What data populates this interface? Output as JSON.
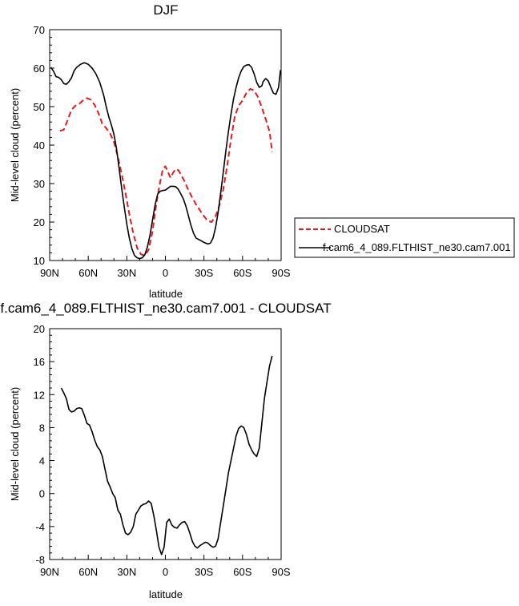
{
  "chart_data": [
    {
      "type": "line",
      "title": "DJF",
      "xlabel": "latitude",
      "ylabel": "Mid-level cloud (percent)",
      "x_tick_labels": [
        "90N",
        "60N",
        "30N",
        "0",
        "30S",
        "60S",
        "90S"
      ],
      "y_tick_labels": [
        "10",
        "20",
        "30",
        "40",
        "50",
        "60",
        "70"
      ],
      "xlim": [
        90,
        -90
      ],
      "ylim": [
        10,
        70
      ],
      "grid": false,
      "legend": "right",
      "series": [
        {
          "name": "CLOUDSAT",
          "color": "#e41a1c",
          "dash": "dashed",
          "points": [
            [
              82,
              43.7
            ],
            [
              79,
              44
            ],
            [
              76,
              46.5
            ],
            [
              73,
              49.2
            ],
            [
              70,
              50.2
            ],
            [
              67,
              50.7
            ],
            [
              64,
              51.6
            ],
            [
              61,
              52.2
            ],
            [
              58,
              51.8
            ],
            [
              55,
              50.4
            ],
            [
              52,
              48.3
            ],
            [
              49,
              45.5
            ],
            [
              46,
              44.4
            ],
            [
              43,
              43
            ],
            [
              40,
              40.8
            ],
            [
              37,
              37
            ],
            [
              34,
              32.5
            ],
            [
              31,
              27.5
            ],
            [
              28,
              22
            ],
            [
              25,
              17.1
            ],
            [
              22,
              13.3
            ],
            [
              19,
              11.6
            ],
            [
              16,
              11.3
            ],
            [
              13,
              12.8
            ],
            [
              10,
              17.5
            ],
            [
              7,
              25
            ],
            [
              4,
              30.5
            ],
            [
              2,
              33.8
            ],
            [
              0,
              34.5
            ],
            [
              -2,
              33
            ],
            [
              -4,
              31.5
            ],
            [
              -6,
              32.8
            ],
            [
              -8,
              33.8
            ],
            [
              -10,
              33.5
            ],
            [
              -12,
              32.4
            ],
            [
              -15,
              30.5
            ],
            [
              -18,
              28.2
            ],
            [
              -21,
              26.3
            ],
            [
              -24,
              24.5
            ],
            [
              -27,
              23
            ],
            [
              -30,
              21.5
            ],
            [
              -33,
              20.3
            ],
            [
              -36,
              20
            ],
            [
              -39,
              21.5
            ],
            [
              -42,
              24.3
            ],
            [
              -45,
              28.5
            ],
            [
              -48,
              34.5
            ],
            [
              -51,
              41.5
            ],
            [
              -54,
              47.5
            ],
            [
              -57,
              50.2
            ],
            [
              -60,
              51.6
            ],
            [
              -63,
              53.5
            ],
            [
              -66,
              54.6
            ],
            [
              -69,
              54.2
            ],
            [
              -72,
              52.5
            ],
            [
              -75,
              49.8
            ],
            [
              -78,
              46.8
            ],
            [
              -81,
              43.5
            ],
            [
              -83,
              38.2
            ]
          ]
        },
        {
          "name": "f.cam6_4_089.FLTHIST_ne30.cam7.001",
          "color": "#000000",
          "dash": "solid",
          "points": [
            [
              89,
              60.2
            ],
            [
              87,
              59.2
            ],
            [
              85,
              57.8
            ],
            [
              83,
              57.6
            ],
            [
              81,
              57
            ],
            [
              79,
              56
            ],
            [
              77,
              55.8
            ],
            [
              75,
              56.5
            ],
            [
              73,
              57.5
            ],
            [
              71,
              59.3
            ],
            [
              69,
              60.2
            ],
            [
              66,
              61
            ],
            [
              63,
              61.4
            ],
            [
              60,
              61
            ],
            [
              57,
              60
            ],
            [
              54,
              58.5
            ],
            [
              51,
              56.3
            ],
            [
              48,
              53
            ],
            [
              46,
              50
            ],
            [
              44,
              47.3
            ],
            [
              42,
              45.2
            ],
            [
              40,
              42.8
            ],
            [
              38,
              39
            ],
            [
              36,
              34
            ],
            [
              34,
              28.8
            ],
            [
              32,
              24
            ],
            [
              30,
              19.5
            ],
            [
              28,
              15.8
            ],
            [
              26,
              13
            ],
            [
              24,
              11.3
            ],
            [
              22,
              10.7
            ],
            [
              20,
              10.5
            ],
            [
              18,
              10.7
            ],
            [
              16,
              11.5
            ],
            [
              14,
              13.5
            ],
            [
              12,
              16.5
            ],
            [
              10,
              20.5
            ],
            [
              8,
              24.5
            ],
            [
              6,
              27.3
            ],
            [
              4,
              28
            ],
            [
              2,
              28.2
            ],
            [
              0,
              28.3
            ],
            [
              -2,
              28.8
            ],
            [
              -4,
              29.3
            ],
            [
              -6,
              29.3
            ],
            [
              -8,
              29.2
            ],
            [
              -10,
              28.5
            ],
            [
              -12,
              27.3
            ],
            [
              -14,
              26
            ],
            [
              -16,
              24
            ],
            [
              -18,
              21.5
            ],
            [
              -20,
              19
            ],
            [
              -22,
              17
            ],
            [
              -24,
              15.8
            ],
            [
              -27,
              15.3
            ],
            [
              -30,
              14.7
            ],
            [
              -33,
              14.3
            ],
            [
              -35,
              14.5
            ],
            [
              -37,
              15.8
            ],
            [
              -39,
              18.5
            ],
            [
              -41,
              22.5
            ],
            [
              -43,
              27.5
            ],
            [
              -45,
              33
            ],
            [
              -47,
              38.5
            ],
            [
              -49,
              43.5
            ],
            [
              -51,
              48
            ],
            [
              -53,
              52
            ],
            [
              -55,
              55
            ],
            [
              -57,
              57.5
            ],
            [
              -59,
              59.3
            ],
            [
              -61,
              60.4
            ],
            [
              -63,
              60.8
            ],
            [
              -65,
              60.9
            ],
            [
              -67,
              60.2
            ],
            [
              -69,
              58.5
            ],
            [
              -71,
              56.3
            ],
            [
              -73,
              55
            ],
            [
              -75,
              55.4
            ],
            [
              -76,
              56.5
            ],
            [
              -78,
              57.3
            ],
            [
              -80,
              56.7
            ],
            [
              -82,
              55
            ],
            [
              -84,
              53.5
            ],
            [
              -86,
              53.2
            ],
            [
              -88,
              55
            ],
            [
              -89.5,
              59.5
            ]
          ]
        }
      ]
    },
    {
      "type": "line",
      "title": "f.cam6_4_089.FLTHIST_ne30.cam7.001 - CLOUDSAT",
      "xlabel": "latitude",
      "ylabel": "Mid-level cloud (percent)",
      "x_tick_labels": [
        "90N",
        "60N",
        "30N",
        "0",
        "30S",
        "60S",
        "90S"
      ],
      "y_tick_labels": [
        "-8",
        "-4",
        "0",
        "4",
        "8",
        "12",
        "16",
        "20"
      ],
      "xlim": [
        90,
        -90
      ],
      "ylim": [
        -8,
        20
      ],
      "grid": false,
      "legend": "none",
      "series": [
        {
          "color": "#000000",
          "dash": "solid",
          "points": [
            [
              81,
              12.8
            ],
            [
              79,
              12.2
            ],
            [
              77,
              11.5
            ],
            [
              75,
              10.2
            ],
            [
              73,
              9.9
            ],
            [
              71,
              10
            ],
            [
              69,
              10.3
            ],
            [
              67,
              10.4
            ],
            [
              65,
              10.3
            ],
            [
              63,
              9.5
            ],
            [
              61,
              8.5
            ],
            [
              59,
              8.3
            ],
            [
              57,
              7.5
            ],
            [
              55,
              6.5
            ],
            [
              53,
              5.7
            ],
            [
              51,
              5.3
            ],
            [
              49,
              4.5
            ],
            [
              47,
              3
            ],
            [
              45,
              1.5
            ],
            [
              43,
              0.8
            ],
            [
              41,
              0
            ],
            [
              39,
              -0.5
            ],
            [
              37,
              -2
            ],
            [
              35,
              -2.5
            ],
            [
              33,
              -3.8
            ],
            [
              31,
              -4.8
            ],
            [
              29,
              -5
            ],
            [
              27,
              -4.7
            ],
            [
              25,
              -4
            ],
            [
              23,
              -2.5
            ],
            [
              21,
              -2
            ],
            [
              19,
              -1.5
            ],
            [
              17,
              -1.3
            ],
            [
              15,
              -1.2
            ],
            [
              13,
              -0.9
            ],
            [
              11,
              -1.2
            ],
            [
              9,
              -2.7
            ],
            [
              7,
              -4.5
            ],
            [
              5,
              -6.5
            ],
            [
              3,
              -7.4
            ],
            [
              1,
              -6.5
            ],
            [
              0,
              -5
            ],
            [
              -1,
              -3.5
            ],
            [
              -3,
              -3.1
            ],
            [
              -5,
              -3.8
            ],
            [
              -7,
              -4.1
            ],
            [
              -9,
              -4.2
            ],
            [
              -11,
              -3.8
            ],
            [
              -13,
              -3.5
            ],
            [
              -15,
              -3.4
            ],
            [
              -17,
              -3.9
            ],
            [
              -19,
              -4.8
            ],
            [
              -21,
              -5.8
            ],
            [
              -23,
              -6.4
            ],
            [
              -25,
              -6.6
            ],
            [
              -27,
              -6.3
            ],
            [
              -29,
              -6.1
            ],
            [
              -31,
              -5.9
            ],
            [
              -33,
              -6
            ],
            [
              -35,
              -6.3
            ],
            [
              -37,
              -6.5
            ],
            [
              -39,
              -6.4
            ],
            [
              -41,
              -5.5
            ],
            [
              -43,
              -3.5
            ],
            [
              -45,
              -1.5
            ],
            [
              -47,
              0.5
            ],
            [
              -49,
              2.5
            ],
            [
              -51,
              4
            ],
            [
              -53,
              5.5
            ],
            [
              -55,
              7
            ],
            [
              -57,
              7.9
            ],
            [
              -59,
              8.2
            ],
            [
              -61,
              8
            ],
            [
              -63,
              7.2
            ],
            [
              -65,
              6
            ],
            [
              -67,
              5.3
            ],
            [
              -69,
              4.8
            ],
            [
              -71,
              4.5
            ],
            [
              -73,
              5.5
            ],
            [
              -75,
              8.5
            ],
            [
              -77,
              11.5
            ],
            [
              -79,
              13.5
            ],
            [
              -81,
              15.5
            ],
            [
              -83,
              16.7
            ]
          ]
        }
      ]
    }
  ]
}
